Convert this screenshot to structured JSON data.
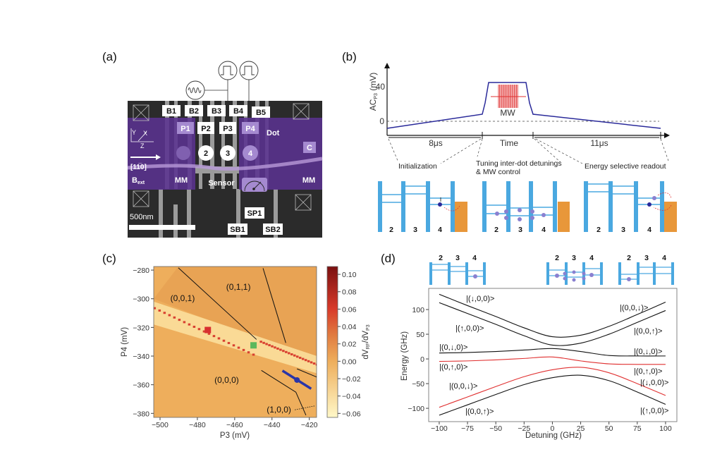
{
  "panels": {
    "a": {
      "label": "(a)",
      "barrier_gates": [
        "B1",
        "B2",
        "B3",
        "B4",
        "B5"
      ],
      "plunger_gates": [
        "P1",
        "P2",
        "P3",
        "P4"
      ],
      "dot_numbers": [
        "2",
        "3",
        "4"
      ],
      "dot_label": "Dot",
      "c_label": "C",
      "axes": {
        "y": "Y",
        "x": "X",
        "z": "Z"
      },
      "direction": "[11̅0]",
      "bext_main": "B",
      "bext_sub": "ext",
      "mm_left": "MM",
      "sensor": "Sensor",
      "mm_right": "MM",
      "sp1": "SP1",
      "sb1": "SB1",
      "sb2": "SB2",
      "scale_bar": "500nm",
      "icons": [
        "sine-source-icon",
        "pulse-source-icon",
        "pulse-source-icon",
        "meter-icon",
        "crossed-box-icon"
      ],
      "colors": {
        "overlay": "#5a3290",
        "gate": "#a8a8a8",
        "sem_bg": "#2b2b2b"
      }
    },
    "b": {
      "label": "(b)",
      "ylabel_main": "AC",
      "ylabel_sub": "P3",
      "ylabel_unit": " (mV)",
      "yticks": [
        "40",
        "0"
      ],
      "xlabel": "Time",
      "mw_label": "MW",
      "interval_1": "8μs",
      "interval_2": "11μs",
      "phases": {
        "init": "Initialization",
        "tuning_1": "Tuning inter-dot detunings",
        "tuning_2": "& MW control",
        "readout": "Energy selective readout"
      },
      "dot_numbers": [
        "2",
        "3",
        "4"
      ],
      "colors": {
        "pulse": "#2a2a9a",
        "mw": "#e03030",
        "barrier": "#4aa8e0",
        "reservoir": "#e8973a",
        "electron": "#2a2a9a"
      }
    },
    "c": {
      "label": "(c)",
      "colorbar_label_main": "dV",
      "colorbar_label_sub1": "RF",
      "colorbar_label_mid": "/dV",
      "colorbar_label_sub2": "P3"
    },
    "d": {
      "label": "(d)",
      "dot_numbers": [
        "2",
        "3",
        "4"
      ],
      "state_labels_left": [
        "|(↓,0,0)>",
        "|(↑,0,0)>",
        "|(0,↓,0)>",
        "|(0,↑,0)>",
        "|(0,0,↓)>",
        "|(0,0,↑)>"
      ],
      "state_labels_right": [
        "|(0,0,↓)>",
        "|(0,0,↑)>",
        "|(0,↓,0)>",
        "|(0,↑,0)>",
        "|(↓,0,0)>",
        "|(↑,0,0)>"
      ]
    }
  },
  "chart_data": [
    {
      "type": "heatmap",
      "panel": "c",
      "xlabel": "P3 (mV)",
      "ylabel": "P4 (mV)",
      "xlim": [
        -503.4,
        -416.1
      ],
      "ylim": [
        -382.8,
        -277.5
      ],
      "xticks": [
        "−500",
        "−480",
        "−460",
        "−440",
        "−420"
      ],
      "xtick_values": [
        -500,
        -480,
        -460,
        -440,
        -420
      ],
      "yticks": [
        "−280",
        "−300",
        "−320",
        "−340",
        "−360",
        "−380"
      ],
      "ytick_values": [
        -280,
        -300,
        -320,
        -340,
        -360,
        -380
      ],
      "colorbar": {
        "range": [
          -0.0646,
          0.109
        ],
        "ticks": [
          "0.10",
          "0.08",
          "0.06",
          "0.04",
          "0.02",
          "0.00",
          "−0.02",
          "−0.04",
          "−0.06"
        ],
        "tick_values": [
          0.1,
          0.08,
          0.06,
          0.04,
          0.02,
          0.0,
          -0.02,
          -0.04,
          -0.06
        ],
        "colors": [
          "#fff8c8",
          "#eeae5c",
          "#d83a2a",
          "#7a1010"
        ]
      },
      "region_labels": [
        {
          "text": "(0,1,1)",
          "x": -458,
          "y": -291.8
        },
        {
          "text": "(0,0,1)",
          "x": -487.9,
          "y": -299.7
        },
        {
          "text": "(0,0,0)",
          "x": -464.3,
          "y": -356.7
        },
        {
          "text": "(1,0,0)",
          "x": -436.3,
          "y": -377.5
        }
      ],
      "boundary_lines": [
        [
          [
            -490.2,
            -278.4
          ],
          [
            -448.3,
            -328.4
          ]
        ],
        [
          [
            -426.6,
            -348.9
          ],
          [
            -416.1,
            -354.6
          ]
        ],
        [
          [
            -444.8,
            -278.7
          ],
          [
            -432.6,
            -330.8
          ]
        ],
        [
          [
            -445.7,
            -350.0
          ],
          [
            -427.2,
            -365.2
          ],
          [
            -421.8,
            -381.3
          ]
        ]
      ],
      "dotted_line": [
        [
          -427.8,
          -377.5
        ],
        [
          -417.1,
          -374.8
        ]
      ],
      "transition_lines": [
        [
          [
            -503,
            -306.6
          ],
          [
            -450,
            -339
          ]
        ],
        [
          [
            -446,
            -330
          ],
          [
            -416,
            -346
          ]
        ]
      ],
      "markers": [
        {
          "shape": "square",
          "color": "#d83030",
          "x": -474.4,
          "y": -321.8
        },
        {
          "shape": "square",
          "color": "#5cb85c",
          "x": -449.9,
          "y": -332.5
        },
        {
          "shape": "dot",
          "color": "#2a35a8",
          "x": -426.6,
          "y": -356.7
        }
      ],
      "blue_segment": [
        [
          -434.4,
          -350.2
        ],
        [
          -419.0,
          -362.8
        ]
      ]
    },
    {
      "type": "line",
      "panel": "d",
      "xlabel": "Detuning (GHz)",
      "ylabel": "Energy (GHz)",
      "xlim": [
        -109.3,
        110
      ],
      "ylim": [
        -127,
        142.9
      ],
      "xticks": [
        "−100",
        "−75",
        "−50",
        "−25",
        "0",
        "25",
        "50",
        "75",
        "100"
      ],
      "xtick_values": [
        -100,
        -75,
        -50,
        -25,
        0,
        25,
        50,
        75,
        100
      ],
      "yticks": [
        "100",
        "50",
        "0",
        "−50",
        "−100"
      ],
      "ytick_values": [
        100,
        50,
        0,
        -50,
        -100
      ],
      "x": [
        -100,
        -75,
        -50,
        -25,
        0,
        25,
        50,
        75,
        100
      ],
      "series": [
        {
          "color": "#111111",
          "values": [
            131,
            108,
            86,
            63,
            45,
            48,
            66,
            90,
            115
          ]
        },
        {
          "color": "#111111",
          "values": [
            114,
            92,
            70,
            47,
            28,
            32,
            50,
            74,
            98
          ]
        },
        {
          "color": "#111111",
          "values": [
            12,
            13,
            15,
            18,
            21,
            15,
            7,
            6,
            6
          ]
        },
        {
          "color": "#e03030",
          "values": [
            -5,
            -4,
            -2,
            1,
            4,
            -4,
            -10,
            -11,
            -11
          ]
        },
        {
          "color": "#e03030",
          "values": [
            -98,
            -77,
            -56,
            -36,
            -22,
            -17,
            -28,
            -50,
            -74
          ]
        },
        {
          "color": "#111111",
          "values": [
            -114,
            -93,
            -72,
            -52,
            -38,
            -33,
            -44,
            -67,
            -92
          ]
        }
      ]
    }
  ]
}
